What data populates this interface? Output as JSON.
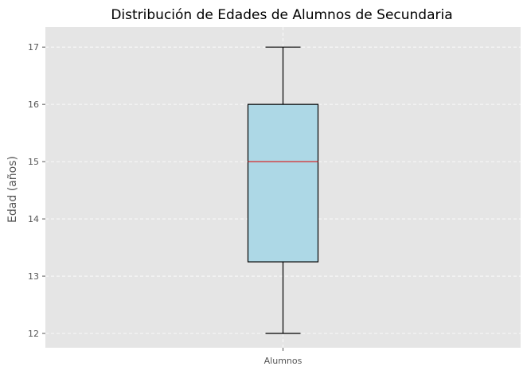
{
  "chart_data": {
    "type": "boxplot",
    "title": "Distribución de Edades de Alumnos de Secundaria",
    "xlabel": "",
    "ylabel": "Edad (años)",
    "categories": [
      "Alumnos"
    ],
    "box": {
      "min": 12,
      "q1": 13.25,
      "median": 15,
      "q3": 16,
      "max": 17
    },
    "yticks": [
      "12",
      "13",
      "14",
      "15",
      "16",
      "17"
    ],
    "ylim": [
      11.75,
      17.35
    ],
    "grid": true,
    "colors": {
      "background": "#e5e5e5",
      "grid": "#ffffff",
      "box_fill": "#add8e6",
      "box_edge": "#000000",
      "median": "#d62728",
      "tick_text": "#555555"
    }
  }
}
